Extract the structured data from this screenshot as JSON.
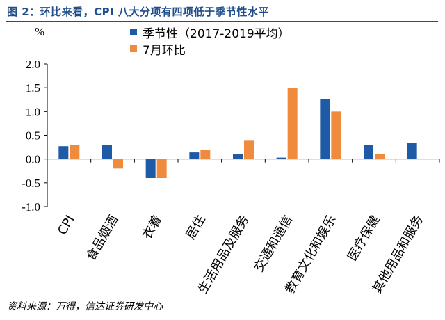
{
  "title": "图 2：环比来看，CPI 八大分项有四项低于季节性水平",
  "source": "资料来源：万得，信达证券研发中心",
  "chart_data": {
    "type": "bar",
    "unit": "%",
    "categories": [
      "CPI",
      "食品烟酒",
      "衣着",
      "居住",
      "生活用品及服务",
      "交通和通信",
      "教育文化和娱乐",
      "医疗保健",
      "其他用品和服务"
    ],
    "series": [
      {
        "name": "季节性（2017-2019平均）",
        "color": "#1f5aa6",
        "values": [
          0.27,
          0.29,
          -0.4,
          0.14,
          0.1,
          0.03,
          1.26,
          0.3,
          0.34
        ]
      },
      {
        "name": "7月环比",
        "color": "#f08a3c",
        "values": [
          0.3,
          -0.2,
          -0.4,
          0.2,
          0.4,
          1.5,
          1.0,
          0.1,
          null
        ]
      }
    ],
    "ylim": [
      -1.0,
      2.0
    ],
    "yticks": [
      "2.0",
      "1.5",
      "1.0",
      "0.5",
      "0.0",
      "-0.5",
      "-1.0"
    ],
    "legend_position": "top"
  }
}
